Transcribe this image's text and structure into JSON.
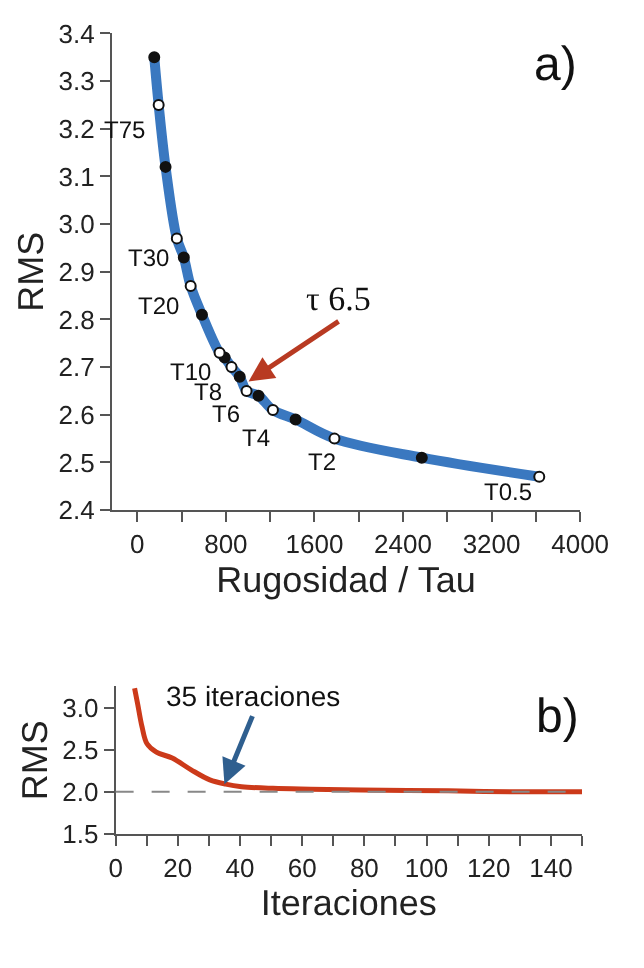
{
  "chart_data": [
    {
      "type": "line",
      "xlabel": "Rugosidad / Tau",
      "ylabel": "RMS",
      "xlim": [
        -230,
        4000
      ],
      "ylim": [
        2.4,
        3.4
      ],
      "xticks": [
        0,
        {
          "value": 400,
          "label": null
        },
        800,
        {
          "value": 1200,
          "label": null
        },
        1600,
        {
          "value": 2000,
          "label": null
        },
        2400,
        {
          "value": 2800,
          "label": null
        },
        3200,
        {
          "value": 3600,
          "label": null
        },
        4000
      ],
      "yticks": [
        {
          "value": 2.4,
          "label": "2.4"
        },
        {
          "value": 2.5,
          "label": "2.5"
        },
        {
          "value": 2.6,
          "label": "2.6"
        },
        {
          "value": 2.7,
          "label": "2.7"
        },
        {
          "value": 2.8,
          "label": "2.8"
        },
        {
          "value": 2.9,
          "label": "2.9"
        },
        {
          "value": 3.0,
          "label": "3.0"
        },
        {
          "value": 3.1,
          "label": "3.1"
        },
        {
          "value": 3.2,
          "label": "3.2"
        },
        {
          "value": 3.3,
          "label": "3.3"
        },
        {
          "value": 3.4,
          "label": "3.4"
        }
      ],
      "series": [
        {
          "color": "#3a78c0",
          "marker": "none",
          "x": [
            153,
            193,
            255,
            357,
            420,
            482,
            584,
            743,
            789,
            851,
            925,
            987,
            1095,
            1225,
            1430,
            1781,
            2570,
            3631
          ],
          "values": [
            3.35,
            3.25,
            3.12,
            2.97,
            2.93,
            2.87,
            2.81,
            2.73,
            2.72,
            2.7,
            2.68,
            2.65,
            2.64,
            2.61,
            2.59,
            2.55,
            2.51,
            2.47
          ]
        },
        {
          "type": "scatter",
          "color": "#111111",
          "marker": "circle",
          "x": [
            153,
            255,
            420,
            584,
            789,
            925,
            1095,
            1430,
            2570
          ],
          "values": [
            3.35,
            3.12,
            2.93,
            2.81,
            2.72,
            2.68,
            2.64,
            2.59,
            2.51
          ]
        },
        {
          "type": "scatter",
          "color": "#ffffff",
          "marker": "circle",
          "x": [
            193,
            357,
            482,
            743,
            851,
            987,
            1225,
            1781,
            3631
          ],
          "values": [
            3.25,
            2.97,
            2.87,
            2.73,
            2.7,
            2.65,
            2.61,
            2.55,
            2.47
          ]
        }
      ],
      "annotations": [
        "a)",
        {
          "text": "T75",
          "x": 193,
          "y": 3.25
        },
        {
          "text": "T30",
          "x": 357,
          "y": 2.97
        },
        {
          "text": "T20",
          "x": 482,
          "y": 2.87
        },
        {
          "text": "T10",
          "x": 743,
          "y": 2.73
        },
        {
          "text": "T8",
          "x": 851,
          "y": 2.7
        },
        {
          "text": "T6",
          "x": 987,
          "y": 2.65
        },
        {
          "text": "T4",
          "x": 1225,
          "y": 2.61
        },
        {
          "text": "T2",
          "x": 1781,
          "y": 2.55
        },
        {
          "text": "T0.5",
          "x": 3631,
          "y": 2.47
        },
        {
          "text": "τ 6.5",
          "x": 1005,
          "y": 2.67
        }
      ]
    },
    {
      "type": "line",
      "xlabel": "Iteraciones",
      "ylabel": "RMS",
      "xlim": [
        0,
        150
      ],
      "ylim": [
        1.5,
        3.25
      ],
      "xticks": [
        0,
        {
          "value": 10,
          "label": null
        },
        20,
        {
          "value": 30,
          "label": null
        },
        40,
        {
          "value": 50,
          "label": null
        },
        60,
        {
          "value": 70,
          "label": null
        },
        80,
        {
          "value": 90,
          "label": null
        },
        100,
        {
          "value": 110,
          "label": null
        },
        120,
        {
          "value": 130,
          "label": null
        },
        140,
        {
          "value": 150,
          "label": null
        }
      ],
      "yticks": [
        1.5,
        {
          "value": 2.0,
          "label": "2.0"
        },
        2.5,
        {
          "value": 3.0,
          "label": "3.0"
        }
      ],
      "series": [
        {
          "color": "#cc3a1a",
          "marker": "none",
          "x": [
            6.1,
            7.1,
            8.5,
            10.1,
            13.1,
            18.2,
            24.3,
            30.3,
            35.4,
            40.5,
            50.6,
            62.7,
            78.9,
            107,
            127,
            150
          ],
          "values": [
            3.23,
            3.04,
            2.77,
            2.57,
            2.47,
            2.4,
            2.26,
            2.14,
            2.09,
            2.06,
            2.04,
            2.03,
            2.02,
            2.01,
            2.0,
            2.0
          ]
        }
      ],
      "ref_lines": [
        {
          "axis": "y",
          "value": 2.0,
          "color": "#888888",
          "line_style": "dashed"
        }
      ],
      "annotations": [
        "b)",
        {
          "text": "35 iteraciones",
          "x": 35,
          "y": 2.09
        }
      ]
    }
  ]
}
